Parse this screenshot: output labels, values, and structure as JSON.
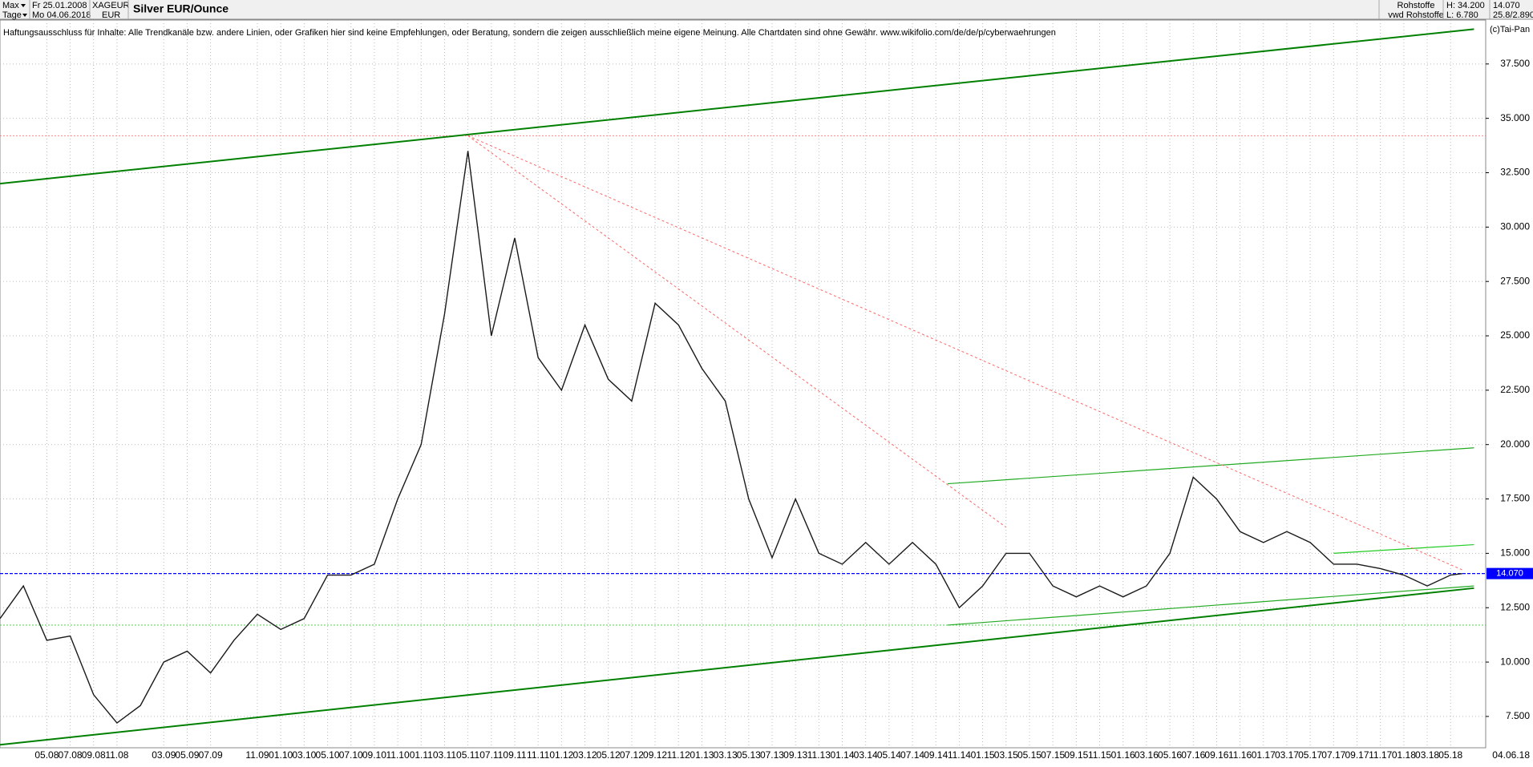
{
  "header": {
    "range": "Max",
    "interval": "Tage",
    "date_from": "Fr 25.01.2008",
    "date_to": "Mo 04.06.2018",
    "symbol": "XAGEUR",
    "currency": "EUR",
    "group": "Rohstoffe",
    "source": "vwd Rohstoffe",
    "high": "H: 34.200",
    "low": "L: 6.780",
    "last": "14.070",
    "change": "25.8/2.890",
    "disclaimer": "Haftungsausschluss für Inhalte: Alle Trendkanäle bzw. andere Linien, oder Grafiken hier sind keine Empfehlungen, oder Beratung, sondern die zeigen ausschließlich meine eigene Meinung. Alle Chartdaten sind ohne Gewähr.  www.wikifolio.com/de/de/p/cyberwaehrungen",
    "copyright": "(c)Tai-Pan"
  },
  "chart_data": {
    "type": "line",
    "title": "Silver EUR/Ounce",
    "color": "#1a1a1a",
    "x": [
      "01.08",
      "03.08",
      "05.08",
      "07.08",
      "09.08",
      "11.08",
      "01.09",
      "03.09",
      "05.09",
      "07.09",
      "09.09",
      "11.09",
      "01.10",
      "03.10",
      "05.10",
      "07.10",
      "09.10",
      "11.10",
      "01.11",
      "03.11",
      "05.11",
      "07.11",
      "09.11",
      "11.11",
      "01.12",
      "03.12",
      "05.12",
      "07.12",
      "09.12",
      "11.12",
      "01.13",
      "03.13",
      "05.13",
      "07.13",
      "09.13",
      "11.13",
      "01.14",
      "03.14",
      "05.14",
      "07.14",
      "09.14",
      "11.14",
      "01.15",
      "03.15",
      "05.15",
      "07.15",
      "09.15",
      "11.15",
      "01.16",
      "03.16",
      "05.16",
      "07.16",
      "09.16",
      "11.16",
      "01.17",
      "03.17",
      "05.17",
      "07.17",
      "09.17",
      "11.17",
      "01.18",
      "03.18",
      "05.18",
      "06.18"
    ],
    "series": [
      {
        "name": "XAGEUR",
        "color": "#1a1a1a",
        "values": [
          12.0,
          13.5,
          11.0,
          11.2,
          8.5,
          7.2,
          8.0,
          10.0,
          10.5,
          9.5,
          11.0,
          12.2,
          11.5,
          12.0,
          14.0,
          14.0,
          14.5,
          17.5,
          20.0,
          26.0,
          33.5,
          25.0,
          29.5,
          24.0,
          22.5,
          25.5,
          23.0,
          22.0,
          26.5,
          25.5,
          23.5,
          22.0,
          17.5,
          14.8,
          17.5,
          15.0,
          14.5,
          15.5,
          14.5,
          15.5,
          14.5,
          12.5,
          13.5,
          15.0,
          15.0,
          13.5,
          13.0,
          13.5,
          13.0,
          13.5,
          15.0,
          18.5,
          17.5,
          16.0,
          15.5,
          16.0,
          15.5,
          14.5,
          14.5,
          14.3,
          14.0,
          13.5,
          14.0,
          14.07
        ]
      }
    ],
    "xlim": [
      "01.08",
      "08.18"
    ],
    "xticks": [
      "05.08",
      "07.08",
      "09.08",
      "11.08",
      "03.09",
      "05.09",
      "07.09",
      "11.09",
      "01.10",
      "03.10",
      "05.10",
      "07.10",
      "09.10",
      "11.10",
      "01.11",
      "03.11",
      "05.11",
      "07.11",
      "09.11",
      "11.11",
      "01.12",
      "03.12",
      "05.12",
      "07.12",
      "09.12",
      "11.12",
      "01.13",
      "03.13",
      "05.13",
      "07.13",
      "09.13",
      "11.13",
      "01.14",
      "03.14",
      "05.14",
      "07.14",
      "09.14",
      "11.14",
      "01.15",
      "03.15",
      "05.15",
      "07.15",
      "09.15",
      "11.15",
      "01.16",
      "03.16",
      "05.16",
      "07.16",
      "09.16",
      "11.16",
      "01.17",
      "03.17",
      "05.17",
      "07.17",
      "09.17",
      "11.17",
      "01.18",
      "03.18",
      "05.18"
    ],
    "last_date_label": "04.06.18",
    "ylim": [
      6.06,
      39.52
    ],
    "yticks": [
      {
        "value": 7.5,
        "label": "7.500"
      },
      {
        "value": 10,
        "label": "10.000"
      },
      {
        "value": 12.5,
        "label": "12.500"
      },
      {
        "value": 15,
        "label": "15.000"
      },
      {
        "value": 17.5,
        "label": "17.500"
      },
      {
        "value": 20,
        "label": "20.000"
      },
      {
        "value": 22.5,
        "label": "22.500"
      },
      {
        "value": 25,
        "label": "25.000"
      },
      {
        "value": 27.5,
        "label": "27.500"
      },
      {
        "value": 30,
        "label": "30.000"
      },
      {
        "value": 32.5,
        "label": "32.500"
      },
      {
        "value": 35,
        "label": "35.000"
      },
      {
        "value": 37.5,
        "label": "37.500"
      }
    ],
    "grid": true,
    "hlines": [
      {
        "value": 14.07,
        "label": "14.070",
        "color": "#0000ff"
      },
      {
        "value": 34.2,
        "color": "#ff6666"
      },
      {
        "value": 11.7,
        "color": "#33cc33"
      }
    ],
    "trendlines": [
      {
        "color": "#008000",
        "width": 2,
        "from": [
          "01.08",
          32.0
        ],
        "to": [
          "07.18",
          39.1
        ]
      },
      {
        "color": "#008000",
        "width": 2,
        "from": [
          "01.08",
          6.2
        ],
        "to": [
          "07.18",
          13.4
        ]
      },
      {
        "color": "#22aa22",
        "width": 1.2,
        "from": [
          "10.14",
          18.2
        ],
        "to": [
          "07.18",
          19.85
        ]
      },
      {
        "color": "#22aa22",
        "width": 1.2,
        "from": [
          "10.14",
          11.7
        ],
        "to": [
          "07.18",
          13.5
        ]
      },
      {
        "color": "#22cc22",
        "width": 1.2,
        "from": [
          "07.17",
          15.0
        ],
        "to": [
          "07.18",
          15.4
        ]
      },
      {
        "color": "#ff6666",
        "width": 1,
        "dash": true,
        "from": [
          "05.11",
          34.2
        ],
        "to": [
          "06.18",
          14.24
        ]
      },
      {
        "color": "#ff6666",
        "width": 1,
        "dash": true,
        "from": [
          "05.11",
          34.2
        ],
        "to": [
          "03.15",
          16.2
        ]
      }
    ]
  }
}
